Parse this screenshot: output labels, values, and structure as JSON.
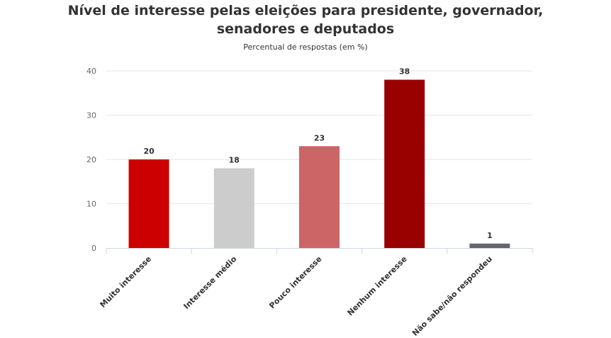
{
  "chart_data": {
    "type": "bar",
    "title_line1": "Nível de interesse pelas eleições para presidente, governador,",
    "title_line2": "senadores e deputados",
    "subtitle": "Percentual de respostas (em %)",
    "categories": [
      "Muito interesse",
      "Interesse médio",
      "Pouco interesse",
      "Nenhum interesse",
      "Não sabe/não respondeu"
    ],
    "values": [
      20,
      18,
      23,
      38,
      1
    ],
    "colors": [
      "#cc0000",
      "#cccccc",
      "#cc6666",
      "#990000",
      "#666666"
    ],
    "ylim": [
      0,
      40
    ],
    "yticks": [
      0,
      10,
      20,
      30,
      40
    ],
    "grid": true,
    "legend": "none"
  }
}
